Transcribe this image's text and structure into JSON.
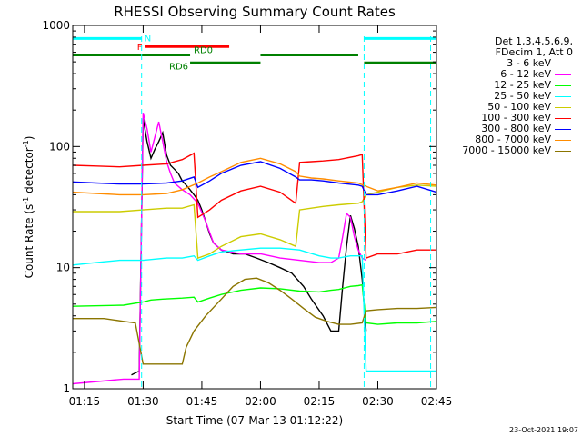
{
  "chart_data": {
    "type": "line",
    "title": "RHESSI Observing Summary Count Rates",
    "xlabel": "Start Time (07-Mar-13 01:12:22)",
    "ylabel": "Count Rate (s",
    "ylabel_sup1": "-1",
    "ylabel_mid": " detector",
    "ylabel_sup2": "-1",
    "ylabel_end": ")",
    "yscale": "log",
    "ylim": [
      1,
      1000
    ],
    "xlim": [
      72,
      165
    ],
    "xtick_positions": [
      75,
      90,
      105,
      120,
      135,
      150,
      165
    ],
    "xtick_labels": [
      "01:15",
      "01:30",
      "01:45",
      "02:00",
      "02:15",
      "02:30",
      "02:45"
    ],
    "ytick_values": [
      1,
      10,
      100,
      1000
    ],
    "ytick_labels": [
      "1",
      "10",
      "100",
      "1000"
    ],
    "timestamp": "23-Oct-2021 19:07",
    "legend_header": [
      "Det 1,3,4,5,6,9,",
      "FDecim 1, Att 0"
    ],
    "series": [
      {
        "name": "3 - 6 keV",
        "color": "#000000",
        "x": [
          87,
          89,
          90,
          91,
          92,
          93,
          94,
          95,
          96,
          97,
          98,
          99,
          100,
          101,
          102,
          103,
          104,
          105,
          106,
          107,
          108,
          110,
          113,
          116,
          119,
          122,
          125,
          128,
          131,
          133,
          136,
          138,
          140,
          141,
          142,
          143,
          144,
          145,
          146,
          147
        ],
        "y": [
          1.3,
          1.4,
          170,
          110,
          80,
          95,
          110,
          130,
          85,
          70,
          65,
          60,
          52,
          48,
          44,
          40,
          36,
          30,
          24,
          19,
          16,
          14,
          13,
          13,
          12,
          11,
          10,
          9,
          7,
          5.5,
          4,
          3,
          3,
          7,
          15,
          27,
          21,
          15,
          8,
          3
        ]
      },
      {
        "name": "6 - 12 keV",
        "color": "#ff00ff",
        "x": [
          72,
          85,
          89,
          90,
          91,
          92,
          93,
          94,
          95,
          96,
          97,
          98,
          100,
          102,
          104,
          106,
          108,
          110,
          115,
          120,
          125,
          130,
          135,
          138,
          140,
          141,
          142,
          143,
          144,
          145,
          146,
          147
        ],
        "y": [
          1.1,
          1.2,
          1.2,
          190,
          140,
          90,
          120,
          160,
          110,
          75,
          60,
          50,
          44,
          40,
          34,
          24,
          16,
          14,
          13,
          13,
          12,
          11.5,
          11,
          11,
          12,
          18,
          28,
          26,
          18,
          14,
          12,
          11.5
        ]
      },
      {
        "name": "12 - 25 keV",
        "color": "#00ff00",
        "x": [
          72,
          85,
          90,
          92,
          95,
          100,
          103,
          104,
          107,
          110,
          115,
          120,
          125,
          130,
          135,
          138,
          140,
          143,
          145,
          146,
          147,
          150,
          155,
          160,
          165
        ],
        "y": [
          4.8,
          4.9,
          5.2,
          5.4,
          5.5,
          5.6,
          5.7,
          5.2,
          5.6,
          6.0,
          6.5,
          6.8,
          6.7,
          6.4,
          6.3,
          6.5,
          6.6,
          7.0,
          7.1,
          7.2,
          3.5,
          3.4,
          3.5,
          3.5,
          3.6
        ]
      },
      {
        "name": "25 - 50 keV",
        "color": "#00ffff",
        "x": [
          72,
          78,
          84,
          90,
          96,
          100,
          103,
          104,
          107,
          110,
          115,
          120,
          125,
          130,
          135,
          138,
          140,
          143,
          145,
          146,
          147,
          150,
          155,
          160,
          165
        ],
        "y": [
          10.5,
          11,
          11.5,
          11.5,
          12,
          12,
          12.5,
          11.5,
          12.5,
          13.5,
          14,
          14.5,
          14.5,
          14,
          12.5,
          12,
          12,
          12.5,
          12.5,
          12.5,
          1.4,
          1.4,
          1.4,
          1.4,
          1.4
        ]
      },
      {
        "name": "50 - 100 keV",
        "color": "#cccc00",
        "x": [
          72,
          78,
          84,
          90,
          96,
          100,
          103,
          104,
          107,
          110,
          115,
          120,
          125,
          129,
          130,
          133,
          136,
          140,
          145,
          146,
          147,
          150,
          155,
          160,
          165
        ],
        "y": [
          29,
          29,
          29,
          30,
          31,
          31,
          33,
          12,
          13,
          15,
          18,
          19,
          17,
          15,
          30,
          31,
          32,
          33,
          34,
          35,
          40,
          42,
          46,
          48,
          47
        ]
      },
      {
        "name": "100 - 300 keV",
        "color": "#ff0000",
        "x": [
          72,
          78,
          84,
          90,
          96,
          100,
          103,
          104,
          107,
          110,
          115,
          120,
          125,
          129,
          130,
          133,
          136,
          140,
          145,
          146,
          147,
          150,
          155,
          160,
          165
        ],
        "y": [
          70,
          69,
          68,
          70,
          72,
          78,
          88,
          26,
          30,
          36,
          43,
          47,
          42,
          34,
          74,
          75,
          76,
          78,
          84,
          86,
          12,
          13,
          13,
          14,
          14
        ]
      },
      {
        "name": "300 - 800 keV",
        "color": "#0000ff",
        "x": [
          72,
          78,
          84,
          90,
          96,
          100,
          103,
          104,
          107,
          110,
          115,
          120,
          125,
          129,
          130,
          133,
          136,
          140,
          145,
          146,
          147,
          150,
          155,
          160,
          165
        ],
        "y": [
          51,
          50,
          49,
          49,
          50,
          52,
          56,
          46,
          52,
          60,
          70,
          75,
          66,
          56,
          53,
          53,
          52,
          50,
          48,
          47,
          40,
          40,
          43,
          47,
          42
        ]
      },
      {
        "name": "800 - 7000 keV",
        "color": "#ff8c00",
        "x": [
          72,
          78,
          84,
          90,
          96,
          100,
          104,
          107,
          110,
          115,
          120,
          125,
          129,
          130,
          133,
          136,
          140,
          145,
          147,
          150,
          155,
          160,
          165
        ],
        "y": [
          42,
          41,
          40,
          40,
          41,
          44,
          50,
          56,
          62,
          74,
          80,
          72,
          62,
          57,
          55,
          54,
          52,
          50,
          47,
          43,
          46,
          50,
          48
        ]
      },
      {
        "name": "7000 - 15000 keV",
        "color": "#8b7500",
        "x": [
          72,
          80,
          85,
          88,
          90,
          95,
          100,
          101,
          103,
          106,
          110,
          113,
          116,
          119,
          122,
          125,
          128,
          131,
          134,
          137,
          140,
          143,
          146,
          147,
          150,
          155,
          160,
          165
        ],
        "y": [
          3.8,
          3.8,
          3.6,
          3.5,
          1.6,
          1.6,
          1.6,
          2.2,
          3.0,
          4.0,
          5.5,
          7.0,
          8.0,
          8.2,
          7.5,
          6.5,
          5.5,
          4.6,
          3.9,
          3.6,
          3.4,
          3.4,
          3.5,
          4.4,
          4.5,
          4.6,
          4.6,
          4.7
        ]
      }
    ],
    "bars": [
      {
        "label": "N",
        "color": "#00ffff",
        "y": 780,
        "segments": [
          [
            72,
            89.6
          ],
          [
            146.5,
            165
          ]
        ]
      },
      {
        "label": "F",
        "color": "#ff0000",
        "y": 670,
        "segments": [
          [
            90.5,
            112
          ]
        ]
      },
      {
        "label": "RD0",
        "color": "#008000",
        "y": 570,
        "segments": [
          [
            72,
            102
          ],
          [
            120,
            145
          ]
        ]
      },
      {
        "label": "RD6",
        "color": "#008000",
        "y": 490,
        "segments": [
          [
            102,
            120
          ],
          [
            146.5,
            165
          ]
        ]
      }
    ],
    "dashed_lines_x": [
      89.6,
      146.5,
      163.5
    ]
  }
}
